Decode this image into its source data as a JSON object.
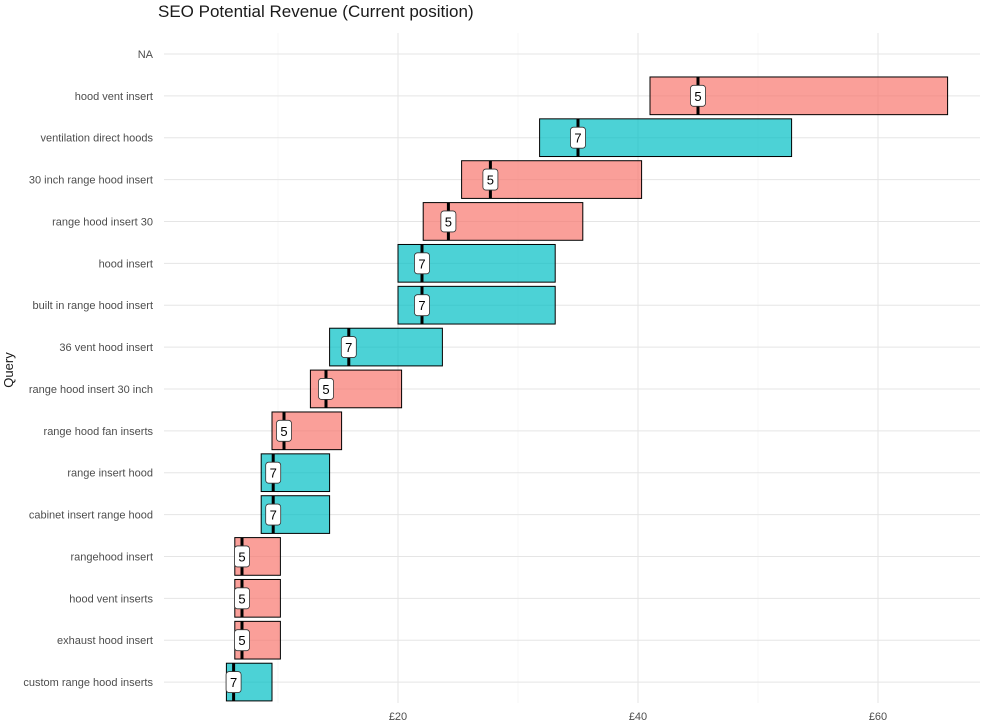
{
  "chart_data": {
    "type": "bar",
    "title": "SEO Potential Revenue (Current position)",
    "ylabel": "Query",
    "xlabel": "",
    "xlim": [
      0.5,
      68.5
    ],
    "x_ticks": [
      20,
      40,
      60
    ],
    "x_tick_labels": [
      "£20",
      "£40",
      "£60"
    ],
    "grid": true,
    "legend": "none",
    "colors": {
      "5": "#F8766D",
      "7": "#00BFC4"
    },
    "rows": [
      {
        "query": "NA",
        "min": null,
        "max": null,
        "value": null,
        "position": null,
        "highlight": false
      },
      {
        "query": "hood vent insert",
        "min": 41,
        "max": 65.8,
        "value": 45,
        "position": "5",
        "highlight": false
      },
      {
        "query": "ventilation direct hoods",
        "min": 31.8,
        "max": 52.8,
        "value": 35,
        "position": "7",
        "highlight": true
      },
      {
        "query": "30 inch range hood insert",
        "min": 25.3,
        "max": 40.3,
        "value": 27.7,
        "position": "5",
        "highlight": false
      },
      {
        "query": "range hood insert 30",
        "min": 22.1,
        "max": 35.4,
        "value": 24.2,
        "position": "5",
        "highlight": false
      },
      {
        "query": "hood insert",
        "min": 20,
        "max": 33.1,
        "value": 22,
        "position": "7",
        "highlight": false
      },
      {
        "query": "built in range hood insert",
        "min": 20,
        "max": 33.1,
        "value": 22,
        "position": "7",
        "highlight": false
      },
      {
        "query": "36 vent hood insert",
        "min": 14.3,
        "max": 23.7,
        "value": 15.9,
        "position": "7",
        "highlight": false
      },
      {
        "query": "range hood insert 30 inch",
        "min": 12.7,
        "max": 20.3,
        "value": 14,
        "position": "5",
        "highlight": false
      },
      {
        "query": "range hood fan inserts",
        "min": 9.5,
        "max": 15.3,
        "value": 10.5,
        "position": "5",
        "highlight": false
      },
      {
        "query": "range insert hood",
        "min": 8.6,
        "max": 14.3,
        "value": 9.6,
        "position": "7",
        "highlight": false
      },
      {
        "query": "cabinet insert range hood",
        "min": 8.6,
        "max": 14.3,
        "value": 9.6,
        "position": "7",
        "highlight": false
      },
      {
        "query": "rangehood insert",
        "min": 6.4,
        "max": 10.2,
        "value": 7,
        "position": "5",
        "highlight": false
      },
      {
        "query": "hood vent inserts",
        "min": 6.4,
        "max": 10.2,
        "value": 7,
        "position": "5",
        "highlight": false
      },
      {
        "query": "exhaust hood insert",
        "min": 6.4,
        "max": 10.2,
        "value": 7,
        "position": "5",
        "highlight": false
      },
      {
        "query": "custom range hood inserts",
        "min": 5.7,
        "max": 9.5,
        "value": 6.3,
        "position": "7",
        "highlight": false
      }
    ]
  }
}
